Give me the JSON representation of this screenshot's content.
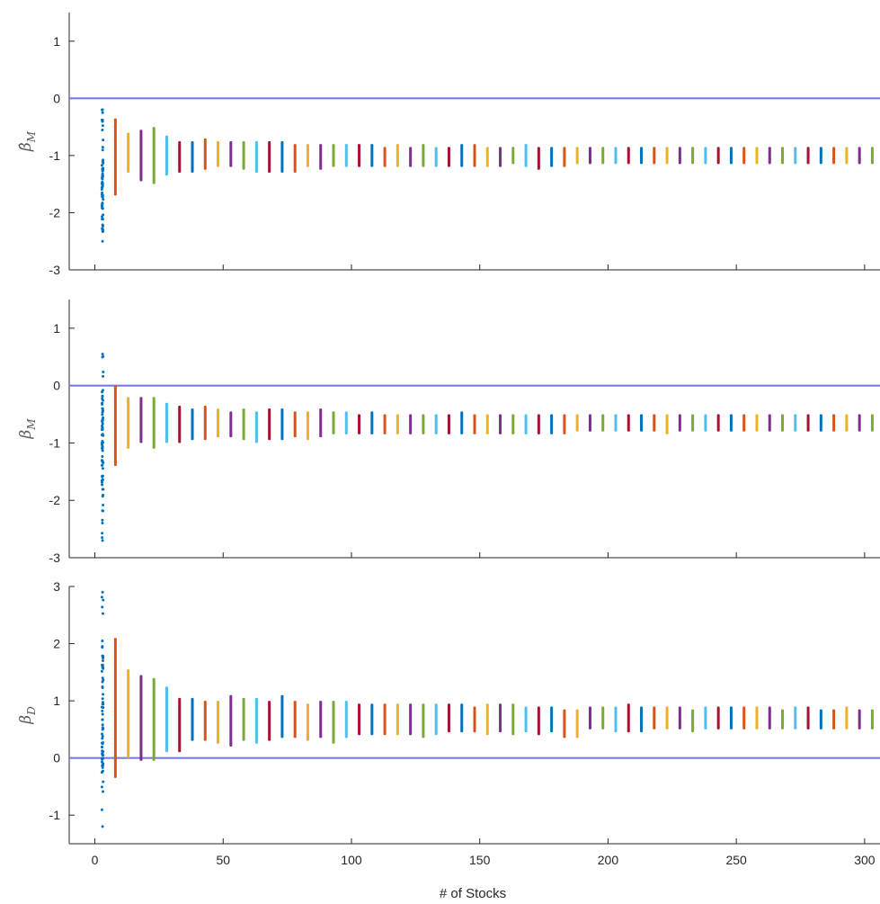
{
  "chart_data": {
    "type": "scatter",
    "xlabel": "# of Stocks",
    "xlim": [
      -10,
      306
    ],
    "x_ticks": [
      0,
      50,
      100,
      150,
      200,
      250,
      300
    ],
    "x_positions": [
      3,
      8,
      13,
      18,
      23,
      28,
      33,
      38,
      43,
      48,
      53,
      58,
      63,
      68,
      73,
      78,
      83,
      88,
      93,
      98,
      103,
      108,
      113,
      118,
      123,
      128,
      133,
      138,
      143,
      148,
      153,
      158,
      163,
      168,
      173,
      178,
      183,
      188,
      193,
      198,
      203,
      208,
      213,
      218,
      223,
      228,
      233,
      238,
      243,
      248,
      253,
      258,
      263,
      268,
      273,
      278,
      283,
      288,
      293,
      298,
      303
    ],
    "series_colors": [
      "#0072bd",
      "#d95319",
      "#edb120",
      "#7e2f8e",
      "#77ac30",
      "#4dbeee",
      "#a2142f"
    ],
    "reference_line_color": "#7b7bdf",
    "panels": [
      {
        "id": "beta-hat-m",
        "ylabel_base": "β̂",
        "ylabel_sub": "M",
        "ylim": [
          -3,
          1.5
        ],
        "y_ticks": [
          -3,
          -2,
          -1,
          0,
          1
        ],
        "reference_y": 0,
        "ranges": [
          [
            -2.5,
            -0.2
          ],
          [
            -1.7,
            -0.35
          ],
          [
            -1.3,
            -0.6
          ],
          [
            -1.45,
            -0.55
          ],
          [
            -1.5,
            -0.5
          ],
          [
            -1.35,
            -0.65
          ],
          [
            -1.3,
            -0.75
          ],
          [
            -1.3,
            -0.75
          ],
          [
            -1.25,
            -0.7
          ],
          [
            -1.2,
            -0.75
          ],
          [
            -1.2,
            -0.75
          ],
          [
            -1.25,
            -0.75
          ],
          [
            -1.3,
            -0.75
          ],
          [
            -1.3,
            -0.75
          ],
          [
            -1.3,
            -0.75
          ],
          [
            -1.3,
            -0.8
          ],
          [
            -1.2,
            -0.8
          ],
          [
            -1.25,
            -0.8
          ],
          [
            -1.2,
            -0.8
          ],
          [
            -1.2,
            -0.8
          ],
          [
            -1.2,
            -0.8
          ],
          [
            -1.2,
            -0.8
          ],
          [
            -1.2,
            -0.85
          ],
          [
            -1.2,
            -0.8
          ],
          [
            -1.2,
            -0.85
          ],
          [
            -1.2,
            -0.8
          ],
          [
            -1.2,
            -0.85
          ],
          [
            -1.2,
            -0.85
          ],
          [
            -1.2,
            -0.8
          ],
          [
            -1.2,
            -0.8
          ],
          [
            -1.2,
            -0.85
          ],
          [
            -1.2,
            -0.85
          ],
          [
            -1.15,
            -0.85
          ],
          [
            -1.2,
            -0.8
          ],
          [
            -1.25,
            -0.85
          ],
          [
            -1.2,
            -0.85
          ],
          [
            -1.2,
            -0.85
          ],
          [
            -1.15,
            -0.85
          ],
          [
            -1.15,
            -0.85
          ],
          [
            -1.15,
            -0.85
          ],
          [
            -1.15,
            -0.85
          ],
          [
            -1.15,
            -0.85
          ],
          [
            -1.15,
            -0.85
          ],
          [
            -1.15,
            -0.85
          ],
          [
            -1.15,
            -0.85
          ],
          [
            -1.15,
            -0.85
          ],
          [
            -1.15,
            -0.85
          ],
          [
            -1.15,
            -0.85
          ],
          [
            -1.15,
            -0.85
          ],
          [
            -1.15,
            -0.85
          ],
          [
            -1.15,
            -0.85
          ],
          [
            -1.15,
            -0.85
          ],
          [
            -1.15,
            -0.85
          ],
          [
            -1.15,
            -0.85
          ],
          [
            -1.15,
            -0.85
          ],
          [
            -1.15,
            -0.85
          ],
          [
            -1.15,
            -0.85
          ],
          [
            -1.15,
            -0.85
          ],
          [
            -1.15,
            -0.85
          ],
          [
            -1.15,
            -0.85
          ],
          [
            -1.15,
            -0.85
          ]
        ]
      },
      {
        "id": "beta-m",
        "ylabel_base": "β",
        "ylabel_sub": "M",
        "ylim": [
          -3,
          1.5
        ],
        "y_ticks": [
          -3,
          -2,
          -1,
          0,
          1
        ],
        "reference_y": 0,
        "ranges": [
          [
            -2.7,
            0.55
          ],
          [
            -1.4,
            0.0
          ],
          [
            -1.1,
            -0.2
          ],
          [
            -1.0,
            -0.2
          ],
          [
            -1.1,
            -0.2
          ],
          [
            -1.0,
            -0.3
          ],
          [
            -1.0,
            -0.35
          ],
          [
            -0.95,
            -0.4
          ],
          [
            -0.95,
            -0.35
          ],
          [
            -0.9,
            -0.4
          ],
          [
            -0.9,
            -0.45
          ],
          [
            -0.95,
            -0.4
          ],
          [
            -1.0,
            -0.45
          ],
          [
            -0.95,
            -0.4
          ],
          [
            -0.95,
            -0.4
          ],
          [
            -0.9,
            -0.45
          ],
          [
            -0.95,
            -0.45
          ],
          [
            -0.9,
            -0.4
          ],
          [
            -0.85,
            -0.45
          ],
          [
            -0.85,
            -0.45
          ],
          [
            -0.85,
            -0.5
          ],
          [
            -0.85,
            -0.45
          ],
          [
            -0.85,
            -0.5
          ],
          [
            -0.85,
            -0.5
          ],
          [
            -0.85,
            -0.5
          ],
          [
            -0.85,
            -0.5
          ],
          [
            -0.85,
            -0.5
          ],
          [
            -0.85,
            -0.5
          ],
          [
            -0.85,
            -0.45
          ],
          [
            -0.85,
            -0.5
          ],
          [
            -0.85,
            -0.5
          ],
          [
            -0.85,
            -0.5
          ],
          [
            -0.85,
            -0.5
          ],
          [
            -0.85,
            -0.5
          ],
          [
            -0.85,
            -0.5
          ],
          [
            -0.85,
            -0.5
          ],
          [
            -0.85,
            -0.5
          ],
          [
            -0.8,
            -0.5
          ],
          [
            -0.8,
            -0.5
          ],
          [
            -0.8,
            -0.5
          ],
          [
            -0.8,
            -0.5
          ],
          [
            -0.8,
            -0.5
          ],
          [
            -0.8,
            -0.5
          ],
          [
            -0.8,
            -0.5
          ],
          [
            -0.85,
            -0.5
          ],
          [
            -0.8,
            -0.5
          ],
          [
            -0.8,
            -0.5
          ],
          [
            -0.8,
            -0.5
          ],
          [
            -0.8,
            -0.5
          ],
          [
            -0.8,
            -0.5
          ],
          [
            -0.8,
            -0.5
          ],
          [
            -0.8,
            -0.5
          ],
          [
            -0.8,
            -0.5
          ],
          [
            -0.8,
            -0.5
          ],
          [
            -0.8,
            -0.5
          ],
          [
            -0.8,
            -0.5
          ],
          [
            -0.8,
            -0.5
          ],
          [
            -0.8,
            -0.5
          ],
          [
            -0.8,
            -0.5
          ],
          [
            -0.8,
            -0.5
          ],
          [
            -0.8,
            -0.5
          ]
        ]
      },
      {
        "id": "beta-d",
        "ylabel_base": "β",
        "ylabel_sub": "D",
        "ylim": [
          -1.5,
          3
        ],
        "y_ticks": [
          -1,
          0,
          1,
          2,
          3
        ],
        "reference_y": 0,
        "ranges": [
          [
            -1.2,
            2.9
          ],
          [
            -0.35,
            2.1
          ],
          [
            0.0,
            1.55
          ],
          [
            -0.05,
            1.45
          ],
          [
            -0.05,
            1.4
          ],
          [
            0.1,
            1.25
          ],
          [
            0.1,
            1.05
          ],
          [
            0.3,
            1.05
          ],
          [
            0.3,
            1.0
          ],
          [
            0.25,
            1.0
          ],
          [
            0.2,
            1.1
          ],
          [
            0.3,
            1.05
          ],
          [
            0.25,
            1.05
          ],
          [
            0.3,
            1.0
          ],
          [
            0.35,
            1.1
          ],
          [
            0.35,
            1.0
          ],
          [
            0.3,
            0.95
          ],
          [
            0.35,
            1.0
          ],
          [
            0.25,
            1.0
          ],
          [
            0.35,
            1.0
          ],
          [
            0.4,
            0.95
          ],
          [
            0.4,
            0.95
          ],
          [
            0.4,
            0.95
          ],
          [
            0.4,
            0.95
          ],
          [
            0.4,
            0.95
          ],
          [
            0.35,
            0.95
          ],
          [
            0.4,
            0.95
          ],
          [
            0.45,
            0.95
          ],
          [
            0.45,
            0.95
          ],
          [
            0.45,
            0.9
          ],
          [
            0.4,
            0.95
          ],
          [
            0.45,
            0.95
          ],
          [
            0.4,
            0.95
          ],
          [
            0.45,
            0.9
          ],
          [
            0.4,
            0.9
          ],
          [
            0.45,
            0.9
          ],
          [
            0.35,
            0.85
          ],
          [
            0.35,
            0.85
          ],
          [
            0.5,
            0.9
          ],
          [
            0.5,
            0.9
          ],
          [
            0.45,
            0.9
          ],
          [
            0.45,
            0.95
          ],
          [
            0.45,
            0.9
          ],
          [
            0.5,
            0.9
          ],
          [
            0.5,
            0.9
          ],
          [
            0.5,
            0.9
          ],
          [
            0.45,
            0.85
          ],
          [
            0.5,
            0.9
          ],
          [
            0.5,
            0.9
          ],
          [
            0.5,
            0.9
          ],
          [
            0.5,
            0.9
          ],
          [
            0.5,
            0.9
          ],
          [
            0.5,
            0.9
          ],
          [
            0.5,
            0.85
          ],
          [
            0.5,
            0.9
          ],
          [
            0.5,
            0.9
          ],
          [
            0.5,
            0.85
          ],
          [
            0.5,
            0.85
          ],
          [
            0.5,
            0.9
          ],
          [
            0.5,
            0.85
          ],
          [
            0.5,
            0.85
          ]
        ]
      }
    ]
  }
}
